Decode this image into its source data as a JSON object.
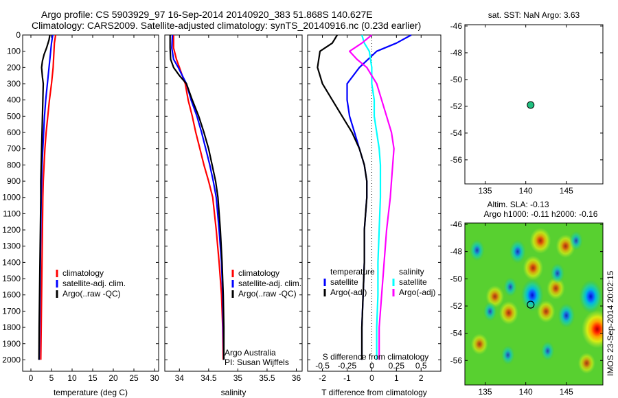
{
  "title_line1": "Argo profile: CS 5903929_97 16-Sep-2014 20140920_383 51.868S 140.627E",
  "title_line2": "Climatology: CARS2009. Satellite-adjusted climatology: synTS_20140916.nc (0.23d earlier)",
  "side_stamp": "IMOS 23-Sep-2014 20:02:15",
  "colors": {
    "red": "#ff0000",
    "blue": "#0000ff",
    "black": "#000000",
    "cyan": "#00ffff",
    "magenta": "#ff00ff",
    "dot": "#20c080"
  },
  "depth_ticks": [
    0,
    100,
    200,
    300,
    400,
    500,
    600,
    700,
    800,
    900,
    1000,
    1100,
    1200,
    1300,
    1400,
    1500,
    1600,
    1700,
    1800,
    1900,
    2000
  ],
  "chart_data": [
    {
      "type": "line",
      "name": "temperature",
      "xlabel": "temperature (deg C)",
      "xlim": [
        -2,
        31
      ],
      "ylim": [
        2070,
        0
      ],
      "xticks": [
        0,
        5,
        10,
        15,
        20,
        25,
        30
      ],
      "legend": [
        "climatology",
        "satellite-adj. clim.",
        "Argo(..raw -QC)"
      ],
      "series": [
        {
          "name": "climatology",
          "color": "red",
          "points": [
            [
              6.0,
              0
            ],
            [
              5.7,
              50
            ],
            [
              5.6,
              100
            ],
            [
              5.4,
              200
            ],
            [
              5.0,
              300
            ],
            [
              4.5,
              400
            ],
            [
              4.1,
              500
            ],
            [
              3.7,
              600
            ],
            [
              3.4,
              700
            ],
            [
              3.2,
              800
            ],
            [
              3.0,
              900
            ],
            [
              2.9,
              1000
            ],
            [
              2.8,
              1200
            ],
            [
              2.7,
              1400
            ],
            [
              2.6,
              1600
            ],
            [
              2.5,
              1800
            ],
            [
              2.4,
              2000
            ]
          ]
        },
        {
          "name": "satellite-adj. clim.",
          "color": "blue",
          "points": [
            [
              5.3,
              0
            ],
            [
              5.0,
              50
            ],
            [
              4.8,
              100
            ],
            [
              4.4,
              200
            ],
            [
              4.0,
              300
            ],
            [
              3.6,
              400
            ],
            [
              3.3,
              500
            ],
            [
              3.1,
              600
            ],
            [
              2.9,
              700
            ],
            [
              2.7,
              800
            ],
            [
              2.6,
              900
            ],
            [
              2.5,
              1000
            ],
            [
              2.4,
              1200
            ],
            [
              2.3,
              1400
            ],
            [
              2.2,
              1600
            ],
            [
              2.1,
              1800
            ],
            [
              2.0,
              2000
            ]
          ]
        },
        {
          "name": "Argo(..raw -QC)",
          "color": "black",
          "points": [
            [
              4.6,
              0
            ],
            [
              4.4,
              30
            ],
            [
              3.8,
              80
            ],
            [
              3.2,
              120
            ],
            [
              2.8,
              160
            ],
            [
              2.6,
              200
            ],
            [
              2.8,
              260
            ],
            [
              3.0,
              300
            ],
            [
              2.9,
              400
            ],
            [
              2.8,
              500
            ],
            [
              2.7,
              600
            ],
            [
              2.6,
              700
            ],
            [
              2.5,
              800
            ],
            [
              2.4,
              900
            ],
            [
              2.4,
              1000
            ],
            [
              2.3,
              1200
            ],
            [
              2.2,
              1400
            ],
            [
              2.1,
              1600
            ],
            [
              2.0,
              1800
            ],
            [
              1.95,
              2000
            ]
          ]
        }
      ]
    },
    {
      "type": "line",
      "name": "salinity",
      "xlabel": "salinity",
      "xlim": [
        33.75,
        36.1
      ],
      "ylim": [
        2070,
        0
      ],
      "xticks": [
        34,
        34.5,
        35,
        35.5,
        36
      ],
      "legend": [
        "climatology",
        "satellite-adj. clim.",
        "Argo(..raw -QC)"
      ],
      "annotation": [
        "Argo Australia",
        "PI: Susan Wijffels"
      ],
      "series": [
        {
          "name": "climatology",
          "color": "red",
          "points": [
            [
              33.9,
              0
            ],
            [
              33.9,
              80
            ],
            [
              33.95,
              150
            ],
            [
              34.0,
              200
            ],
            [
              34.05,
              250
            ],
            [
              34.1,
              300
            ],
            [
              34.15,
              400
            ],
            [
              34.22,
              500
            ],
            [
              34.28,
              600
            ],
            [
              34.35,
              700
            ],
            [
              34.42,
              800
            ],
            [
              34.5,
              900
            ],
            [
              34.57,
              1000
            ],
            [
              34.63,
              1200
            ],
            [
              34.68,
              1400
            ],
            [
              34.72,
              1600
            ],
            [
              34.74,
              1800
            ],
            [
              34.75,
              2000
            ]
          ]
        },
        {
          "name": "satellite-adj. clim.",
          "color": "blue",
          "points": [
            [
              33.88,
              0
            ],
            [
              33.87,
              80
            ],
            [
              33.9,
              150
            ],
            [
              33.98,
              200
            ],
            [
              34.05,
              250
            ],
            [
              34.12,
              300
            ],
            [
              34.2,
              400
            ],
            [
              34.3,
              500
            ],
            [
              34.38,
              600
            ],
            [
              34.45,
              700
            ],
            [
              34.52,
              800
            ],
            [
              34.58,
              900
            ],
            [
              34.63,
              1000
            ],
            [
              34.68,
              1200
            ],
            [
              34.72,
              1400
            ],
            [
              34.74,
              1600
            ],
            [
              34.75,
              1800
            ],
            [
              34.76,
              2000
            ]
          ]
        },
        {
          "name": "Argo(..raw -QC)",
          "color": "black",
          "points": [
            [
              33.84,
              0
            ],
            [
              33.84,
              80
            ],
            [
              33.85,
              150
            ],
            [
              33.9,
              200
            ],
            [
              34.0,
              250
            ],
            [
              34.12,
              300
            ],
            [
              34.22,
              400
            ],
            [
              34.33,
              500
            ],
            [
              34.42,
              600
            ],
            [
              34.5,
              700
            ],
            [
              34.56,
              800
            ],
            [
              34.62,
              900
            ],
            [
              34.66,
              1000
            ],
            [
              34.7,
              1200
            ],
            [
              34.73,
              1400
            ],
            [
              34.75,
              1600
            ],
            [
              34.76,
              1800
            ],
            [
              34.76,
              2000
            ]
          ]
        }
      ]
    },
    {
      "type": "line",
      "name": "difference",
      "xlabel": "T difference from climatology",
      "xlabel_top": "S difference from climatology",
      "xlim": [
        -2.6,
        2.8
      ],
      "ylim": [
        2070,
        0
      ],
      "xticks": [
        -2,
        -1,
        0,
        1,
        2
      ],
      "xticks_s": [
        [
          "-0.5",
          -2
        ],
        [
          "-0.25",
          -1
        ],
        [
          "0",
          0
        ],
        [
          "0.25",
          1
        ],
        [
          "0.5",
          2
        ]
      ],
      "legend_headers": [
        "temperature",
        "salinity"
      ],
      "legend": [
        "satellite",
        "Argo(-adj)",
        "satellite",
        "Argo(-adj)"
      ],
      "series": [
        {
          "name": "temperature satellite",
          "color": "blue",
          "points": [
            [
              1.6,
              0
            ],
            [
              1.0,
              50
            ],
            [
              0.2,
              100
            ],
            [
              -0.5,
              200
            ],
            [
              -1.0,
              300
            ],
            [
              -1.0,
              400
            ],
            [
              -0.9,
              500
            ],
            [
              -0.7,
              600
            ],
            [
              -0.5,
              700
            ],
            [
              -0.3,
              800
            ],
            [
              -0.2,
              900
            ],
            [
              -0.2,
              1000
            ],
            [
              -0.3,
              1200
            ],
            [
              -0.3,
              1400
            ],
            [
              -0.35,
              1600
            ],
            [
              -0.4,
              1800
            ],
            [
              -0.4,
              2000
            ]
          ]
        },
        {
          "name": "temperature Argo(-adj)",
          "color": "black",
          "points": [
            [
              -1.4,
              0
            ],
            [
              -1.6,
              50
            ],
            [
              -2.1,
              100
            ],
            [
              -2.2,
              200
            ],
            [
              -2.0,
              300
            ],
            [
              -1.6,
              400
            ],
            [
              -1.2,
              500
            ],
            [
              -0.8,
              600
            ],
            [
              -0.5,
              700
            ],
            [
              -0.3,
              800
            ],
            [
              -0.2,
              900
            ],
            [
              -0.2,
              1000
            ],
            [
              -0.3,
              1200
            ],
            [
              -0.3,
              1400
            ],
            [
              -0.35,
              1600
            ],
            [
              -0.4,
              1800
            ],
            [
              -0.4,
              2000
            ]
          ]
        },
        {
          "name": "salinity satellite",
          "color": "cyan",
          "points": [
            [
              -0.4,
              0
            ],
            [
              -0.3,
              50
            ],
            [
              -0.1,
              100
            ],
            [
              0.0,
              200
            ],
            [
              0.0,
              300
            ],
            [
              0.1,
              400
            ],
            [
              0.1,
              500
            ],
            [
              0.2,
              600
            ],
            [
              0.3,
              700
            ],
            [
              0.35,
              800
            ],
            [
              0.35,
              900
            ],
            [
              0.35,
              1000
            ],
            [
              0.3,
              1200
            ],
            [
              0.25,
              1400
            ],
            [
              0.25,
              1600
            ],
            [
              0.2,
              1800
            ],
            [
              0.2,
              2000
            ]
          ]
        },
        {
          "name": "salinity Argo(-adj)",
          "color": "magenta",
          "points": [
            [
              0.0,
              0
            ],
            [
              -0.4,
              50
            ],
            [
              -0.9,
              100
            ],
            [
              -0.6,
              150
            ],
            [
              -0.2,
              200
            ],
            [
              0.0,
              250
            ],
            [
              0.2,
              300
            ],
            [
              0.4,
              400
            ],
            [
              0.6,
              500
            ],
            [
              0.8,
              600
            ],
            [
              0.9,
              700
            ],
            [
              0.85,
              800
            ],
            [
              0.8,
              900
            ],
            [
              0.75,
              1000
            ],
            [
              0.6,
              1200
            ],
            [
              0.5,
              1400
            ],
            [
              0.4,
              1600
            ],
            [
              0.3,
              1800
            ],
            [
              0.3,
              2000
            ]
          ]
        }
      ]
    },
    {
      "type": "scatter",
      "name": "sst-map",
      "title": "sat. SST: NaN Argo: 3.63",
      "xlim": [
        132.5,
        149.5
      ],
      "ylim": [
        -57.8,
        -45.9
      ],
      "xticks": [
        135,
        140,
        145
      ],
      "yticks": [
        -46,
        -48,
        -50,
        -52,
        -54,
        -56
      ],
      "points": [
        [
          140.6,
          -51.9
        ]
      ]
    },
    {
      "type": "heatmap",
      "name": "sla-map",
      "title_line1": "Altim. SLA: -0.13",
      "title_line2": "Argo h1000: -0.11 h2000: -0.16",
      "xlim": [
        132.5,
        149.5
      ],
      "ylim": [
        -57.8,
        -45.9
      ],
      "xticks": [
        135,
        140,
        145
      ],
      "yticks": [
        -46,
        -48,
        -50,
        -52,
        -54,
        -56
      ],
      "background": "green",
      "highs": [
        [
          148.8,
          -53.7,
          0.95
        ],
        [
          141.8,
          -47.2,
          0.45
        ],
        [
          140.9,
          -49.2,
          0.4
        ],
        [
          144.9,
          -47.6,
          0.35
        ],
        [
          142.5,
          -52.4,
          0.3
        ],
        [
          136.2,
          -51.3,
          0.3
        ],
        [
          137.9,
          -52.5,
          0.35
        ],
        [
          143.7,
          -50.7,
          0.3
        ],
        [
          147.5,
          -56.2,
          0.25
        ],
        [
          134.3,
          -54.8,
          0.25
        ]
      ],
      "lows": [
        [
          140.8,
          -51.2,
          0.9
        ],
        [
          148.0,
          -51.3,
          0.95
        ],
        [
          145.0,
          -52.7,
          0.55
        ],
        [
          139.0,
          -48.0,
          0.5
        ],
        [
          134.0,
          -47.9,
          0.4
        ],
        [
          135.6,
          -52.4,
          0.3
        ],
        [
          138.1,
          -50.6,
          0.3
        ],
        [
          137.8,
          -55.6,
          0.3
        ],
        [
          143.9,
          -49.6,
          0.35
        ],
        [
          146.2,
          -47.2,
          0.3
        ],
        [
          142.7,
          -55.3,
          0.3
        ]
      ],
      "points": [
        [
          140.6,
          -51.9
        ]
      ]
    }
  ]
}
